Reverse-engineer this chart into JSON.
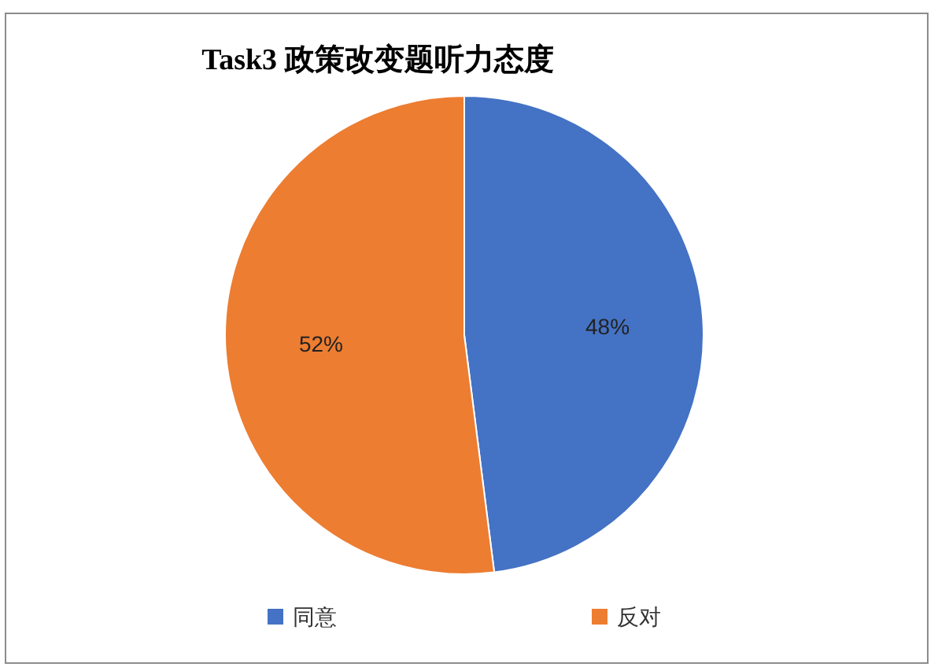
{
  "chart_data": {
    "type": "pie",
    "title": "Task3  政策改变题听力态度",
    "categories": [
      "同意",
      "反对"
    ],
    "values": [
      48,
      52
    ],
    "colors": [
      "#4472c4",
      "#ed7d31"
    ],
    "value_labels": [
      "48%",
      "52%"
    ],
    "legend": "bottom"
  }
}
